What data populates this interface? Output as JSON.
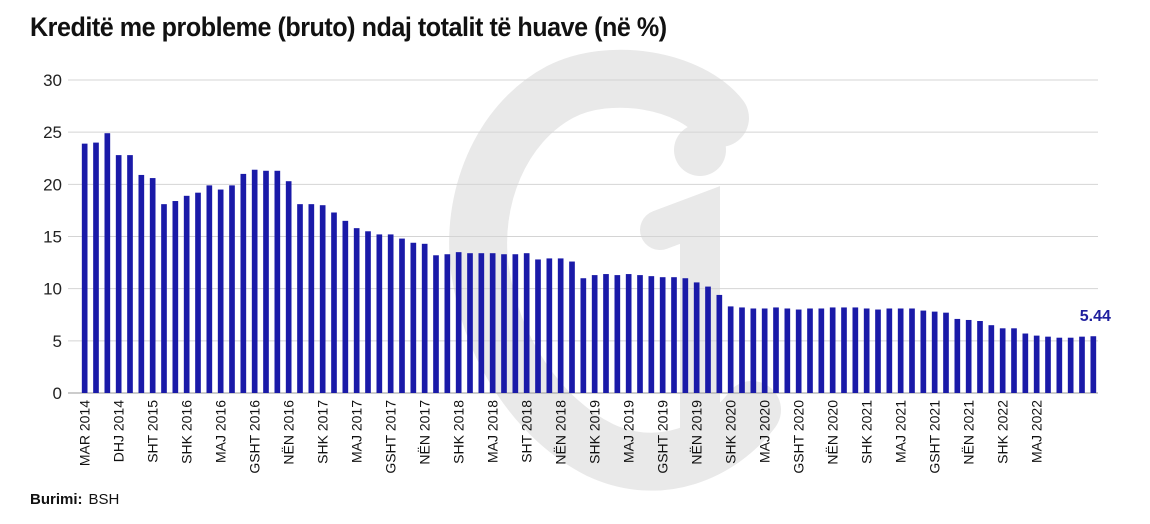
{
  "title": "Kreditë me probleme (bruto) ndaj totalit të huave (në %)",
  "source": {
    "label": "Burimi:",
    "value": "BSH"
  },
  "colors": {
    "bar": "#1a1aa8",
    "grid": "#d4d4d4",
    "value_label": "#1f1f9e",
    "watermark": "#e9e9e9"
  },
  "watermark_icon": "gi-logo-watermark",
  "chart_data": {
    "type": "bar",
    "title": "Kreditë me probleme (bruto) ndaj totalit të huave (në %)",
    "xlabel": "",
    "ylabel": "",
    "ylim": [
      0,
      30
    ],
    "yticks": [
      0,
      5,
      10,
      15,
      20,
      25,
      30
    ],
    "grid": true,
    "x_tick_labels": [
      "MAR 2014",
      "DHJ 2014",
      "SHT 2015",
      "SHK 2016",
      "MAJ 2016",
      "GSHT 2016",
      "NËN 2016",
      "SHK 2017",
      "MAJ 2017",
      "GSHT 2017",
      "NËN 2017",
      "SHK 2018",
      "MAJ 2018",
      "SHT 2018",
      "NËN 2018",
      "SHK 2019",
      "MAJ 2019",
      "GSHT 2019",
      "NËN 2019",
      "SHK 2020",
      "MAJ 2020",
      "GSHT 2020",
      "NËN 2020",
      "SHK 2021",
      "MAJ 2021",
      "GSHT 2021",
      "NËN 2021",
      "SHK 2022",
      "MAJ 2022"
    ],
    "values": [
      23.9,
      24.0,
      24.9,
      22.8,
      22.8,
      20.9,
      20.6,
      18.1,
      18.4,
      18.9,
      19.2,
      19.9,
      19.5,
      19.9,
      21.0,
      21.4,
      21.3,
      21.3,
      20.3,
      18.1,
      18.1,
      18.0,
      17.3,
      16.5,
      15.8,
      15.5,
      15.2,
      15.2,
      14.8,
      14.4,
      14.3,
      13.2,
      13.3,
      13.5,
      13.4,
      13.4,
      13.4,
      13.3,
      13.3,
      13.4,
      12.8,
      12.9,
      12.9,
      12.6,
      11.0,
      11.3,
      11.4,
      11.3,
      11.4,
      11.3,
      11.2,
      11.1,
      11.1,
      11.0,
      10.6,
      10.2,
      9.4,
      8.3,
      8.2,
      8.1,
      8.1,
      8.2,
      8.1,
      8.0,
      8.1,
      8.1,
      8.2,
      8.2,
      8.2,
      8.1,
      8.0,
      8.1,
      8.1,
      8.1,
      7.9,
      7.8,
      7.7,
      7.1,
      7.0,
      6.9,
      6.5,
      6.2,
      6.2,
      5.7,
      5.5,
      5.4,
      5.3,
      5.3,
      5.4,
      5.44
    ],
    "last_value_label": "5.44"
  }
}
